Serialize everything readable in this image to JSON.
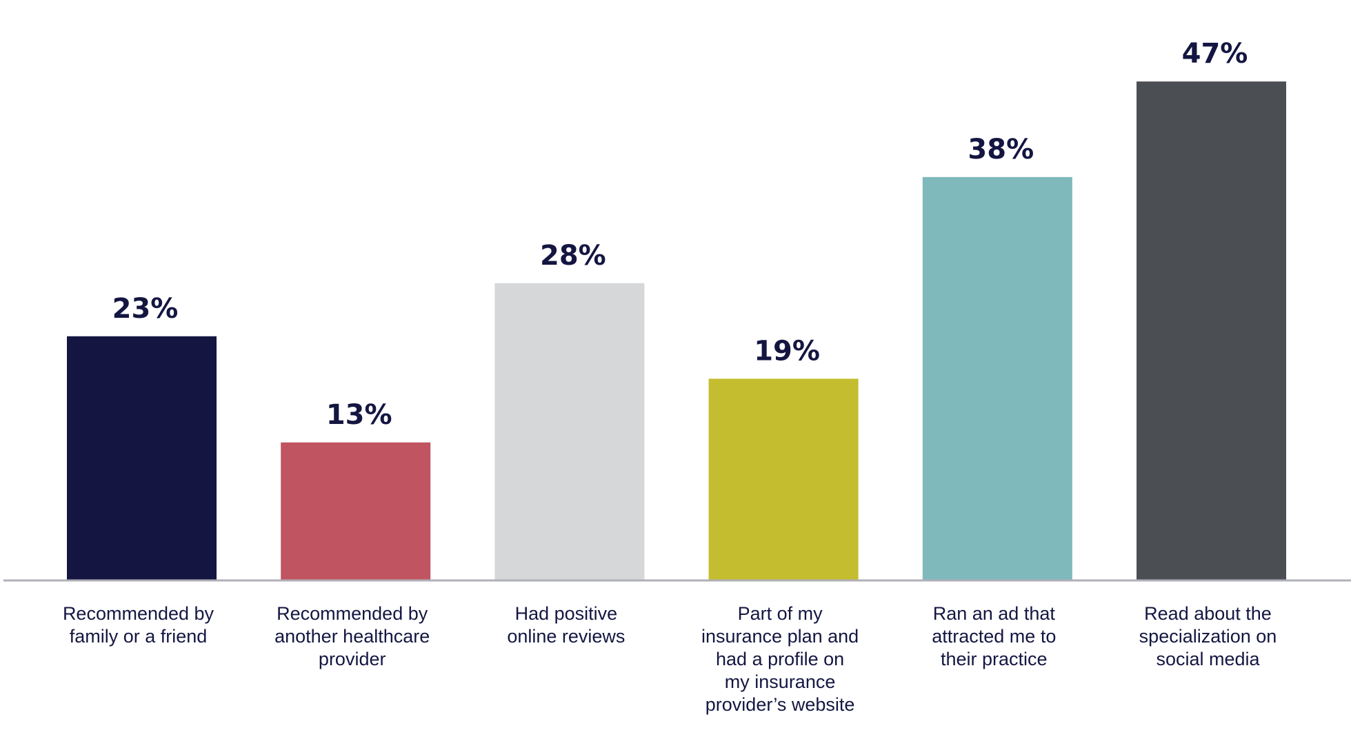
{
  "chart_data": {
    "type": "bar",
    "title": "",
    "xlabel": "",
    "ylabel": "",
    "ylim": [
      0,
      50
    ],
    "grid": false,
    "categories": [
      [
        "Recommended by",
        "family or a friend"
      ],
      [
        "Recommended by",
        "another healthcare",
        "provider"
      ],
      [
        "Had positive",
        "online reviews"
      ],
      [
        "Part of my",
        "insurance plan and",
        "had a profile on",
        "my insurance",
        "provider’s website"
      ],
      [
        "Ran an ad that",
        "attracted me to",
        "their practice"
      ],
      [
        "Read about the",
        "specialization on",
        "social media"
      ]
    ],
    "values": [
      23,
      13,
      28,
      19,
      38,
      47
    ],
    "value_labels": [
      "23%",
      "13%",
      "28%",
      "19%",
      "38%",
      "47%"
    ],
    "colors": [
      "#141641",
      "#c05460",
      "#d6d7d9",
      "#c4bd2f",
      "#7fb9bc",
      "#4b4e53"
    ],
    "axis_color": "#b0b0b8"
  }
}
